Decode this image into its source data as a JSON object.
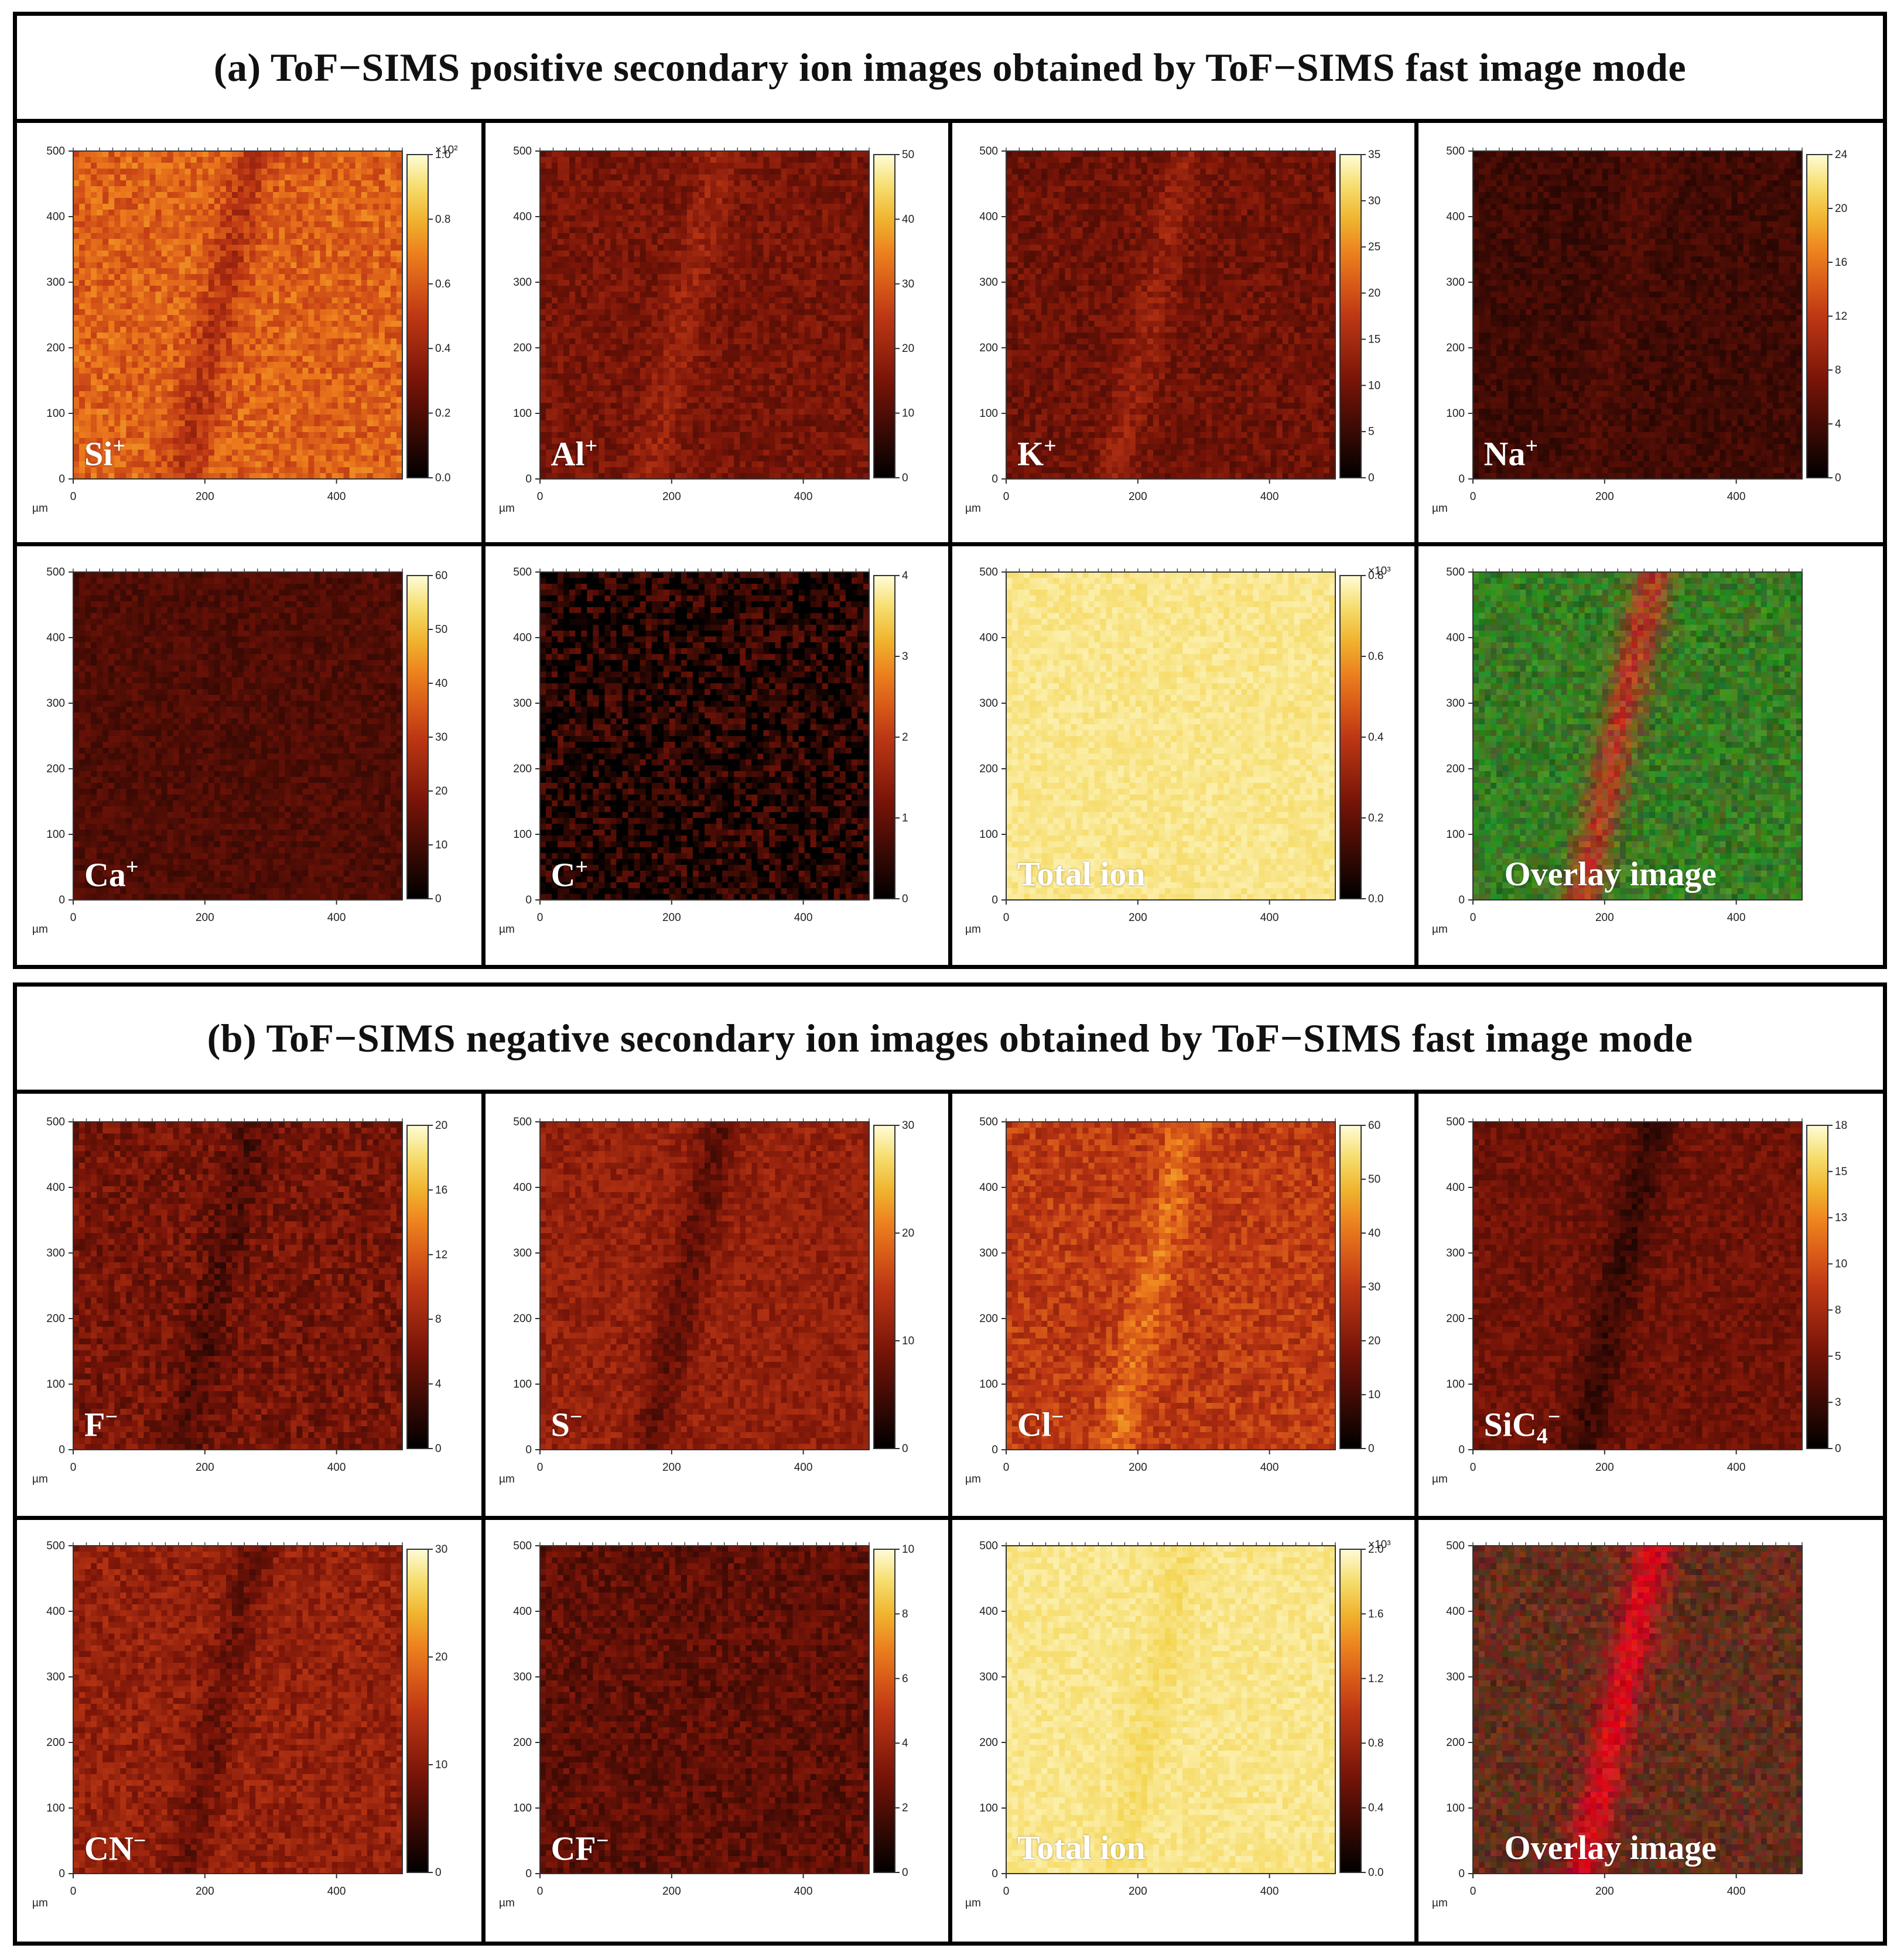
{
  "sections": [
    {
      "id": "a",
      "title": "(a) ToF−SIMS positive secondary ion images obtained by ToF−SIMS fast image mode",
      "panels": [
        {
          "label": "Si",
          "sup": "+",
          "sub": "",
          "map": "heat",
          "base": 0.62,
          "band": -0.15,
          "noise": 0.1,
          "colorbar": [
            "0.0",
            "0.2",
            "0.4",
            "0.6",
            "0.8",
            "1.0",
            "×10²"
          ]
        },
        {
          "label": "Al",
          "sup": "+",
          "sub": "",
          "map": "heat",
          "base": 0.3,
          "band": 0.1,
          "noise": 0.08,
          "colorbar": [
            "0",
            "10",
            "20",
            "30",
            "40",
            "50"
          ]
        },
        {
          "label": "K",
          "sup": "+",
          "sub": "",
          "map": "heat",
          "base": 0.28,
          "band": 0.1,
          "noise": 0.08,
          "colorbar": [
            "0",
            "5",
            "10",
            "15",
            "20",
            "25",
            "30",
            "35"
          ]
        },
        {
          "label": "Na",
          "sup": "+",
          "sub": "",
          "map": "heat",
          "base": 0.16,
          "band": 0.04,
          "noise": 0.06,
          "colorbar": [
            "0",
            "4",
            "8",
            "12",
            "16",
            "20",
            "24"
          ]
        },
        {
          "label": "Ca",
          "sup": "+",
          "sub": "",
          "map": "heat",
          "base": 0.2,
          "band": 0.0,
          "noise": 0.06,
          "colorbar": [
            "0",
            "10",
            "20",
            "30",
            "40",
            "50",
            "60"
          ]
        },
        {
          "label": "C",
          "sup": "+",
          "sub": "",
          "map": "heat",
          "base": 0.08,
          "band": 0.0,
          "noise": 0.18,
          "colorbar": [
            "0",
            "1",
            "2",
            "3",
            "4"
          ]
        },
        {
          "label": "Total ion",
          "sup": "",
          "sub": "",
          "map": "heat",
          "base": 0.93,
          "band": 0.0,
          "noise": 0.03,
          "colorbar": [
            "0.0",
            "0.2",
            "0.4",
            "0.6",
            "0.8",
            "×10³"
          ]
        },
        {
          "label": "Overlay image",
          "sup": "",
          "sub": "",
          "map": "overlay-green",
          "base": 0.55,
          "band": 0.35,
          "noise": 0.1,
          "colorbar": []
        }
      ]
    },
    {
      "id": "b",
      "title": "(b) ToF−SIMS negative secondary ion images obtained by ToF−SIMS fast image mode",
      "panels": [
        {
          "label": "F",
          "sup": "−",
          "sub": "",
          "map": "heat",
          "base": 0.3,
          "band": -0.1,
          "noise": 0.1,
          "colorbar": [
            "0",
            "4",
            "8",
            "12",
            "16",
            "20"
          ]
        },
        {
          "label": "S",
          "sup": "−",
          "sub": "",
          "map": "heat",
          "base": 0.38,
          "band": -0.14,
          "noise": 0.08,
          "colorbar": [
            "0",
            "10",
            "20",
            "30"
          ]
        },
        {
          "label": "Cl",
          "sup": "−",
          "sub": "",
          "map": "heat",
          "base": 0.5,
          "band": 0.15,
          "noise": 0.1,
          "colorbar": [
            "0",
            "10",
            "20",
            "30",
            "40",
            "50",
            "60"
          ]
        },
        {
          "label": "SiC",
          "sup": "−",
          "sub": "4",
          "map": "heat",
          "base": 0.28,
          "band": -0.14,
          "noise": 0.07,
          "colorbar": [
            "0",
            "3",
            "5",
            "8",
            "10",
            "13",
            "15",
            "18"
          ]
        },
        {
          "label": "CN",
          "sup": "−",
          "sub": "",
          "map": "heat",
          "base": 0.38,
          "band": -0.12,
          "noise": 0.09,
          "colorbar": [
            "0",
            "10",
            "20",
            "30"
          ]
        },
        {
          "label": "CF",
          "sup": "−",
          "sub": "",
          "map": "heat",
          "base": 0.24,
          "band": 0.0,
          "noise": 0.09,
          "colorbar": [
            "0",
            "2",
            "4",
            "6",
            "8",
            "10"
          ]
        },
        {
          "label": "Total ion",
          "sup": "",
          "sub": "",
          "map": "heat",
          "base": 0.93,
          "band": -0.03,
          "noise": 0.03,
          "colorbar": [
            "0.0",
            "0.4",
            "0.8",
            "1.2",
            "1.6",
            "2.0",
            "×10³"
          ]
        },
        {
          "label": "Overlay image",
          "sup": "",
          "sub": "",
          "map": "overlay-red",
          "base": 0.45,
          "band": 0.4,
          "noise": 0.1,
          "colorbar": []
        }
      ]
    }
  ],
  "axis": {
    "unit": "µm",
    "x_ticks": [
      "0",
      "200",
      "400"
    ],
    "y_ticks": [
      "0",
      "100",
      "200",
      "300",
      "400",
      "500"
    ],
    "range_um": [
      0,
      500
    ]
  },
  "colors": {
    "heat_low": "#000000",
    "heat_mid": "#c0391b",
    "heat_high": "#fffcd0",
    "overlay_green": "#3cb31c",
    "overlay_red": "#d9241a"
  }
}
